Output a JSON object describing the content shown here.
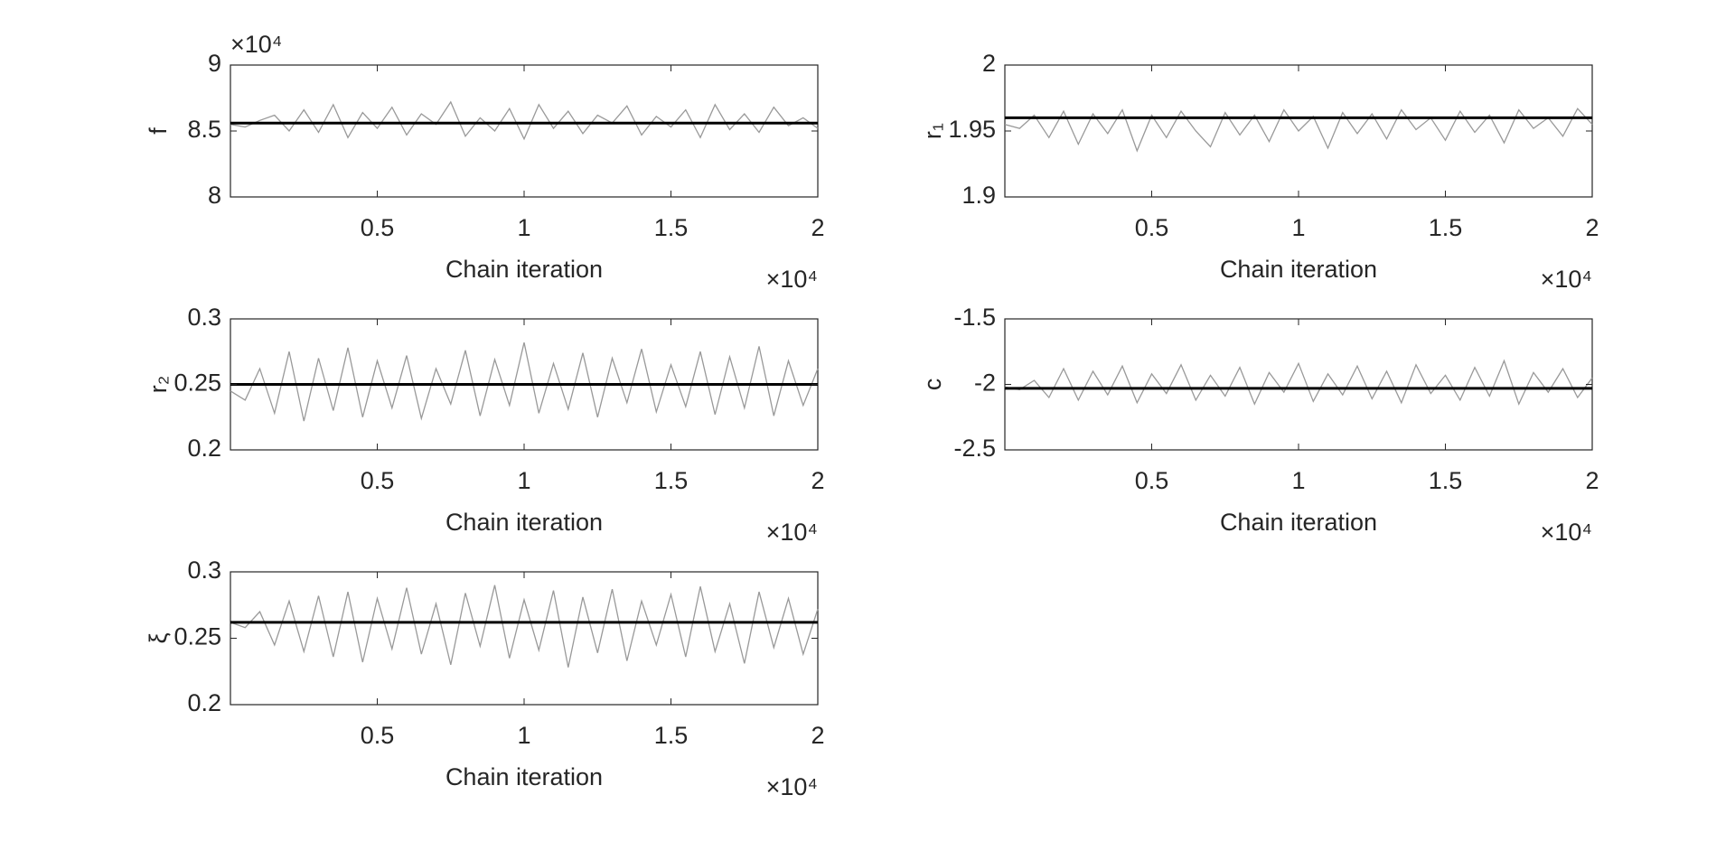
{
  "chart_data": [
    {
      "type": "line",
      "ylabel": "f",
      "xlabel": "Chain iteration",
      "x_scale_label": "×10⁴",
      "y_scale_label": "×10⁴",
      "xlim": [
        0,
        2
      ],
      "xticks": [
        0.5,
        1,
        1.5,
        2
      ],
      "ylim": [
        8,
        9
      ],
      "yticks": [
        8,
        8.5,
        9
      ],
      "x": [
        0,
        0.05,
        0.1,
        0.15,
        0.2,
        0.25,
        0.3,
        0.35,
        0.4,
        0.45,
        0.5,
        0.55,
        0.6,
        0.65,
        0.7,
        0.75,
        0.8,
        0.85,
        0.9,
        0.95,
        1,
        1.05,
        1.1,
        1.15,
        1.2,
        1.25,
        1.3,
        1.35,
        1.4,
        1.45,
        1.5,
        1.55,
        1.6,
        1.65,
        1.7,
        1.75,
        1.8,
        1.85,
        1.9,
        1.95,
        2
      ],
      "values": [
        8.55,
        8.53,
        8.58,
        8.62,
        8.5,
        8.66,
        8.49,
        8.7,
        8.45,
        8.64,
        8.52,
        8.68,
        8.47,
        8.63,
        8.55,
        8.72,
        8.46,
        8.6,
        8.5,
        8.67,
        8.44,
        8.7,
        8.52,
        8.65,
        8.48,
        8.62,
        8.56,
        8.69,
        8.47,
        8.61,
        8.53,
        8.66,
        8.45,
        8.7,
        8.51,
        8.63,
        8.49,
        8.68,
        8.54,
        8.6,
        8.52
      ],
      "color": "#999999",
      "reference": 8.56,
      "reference_color": "#000000"
    },
    {
      "type": "line",
      "ylabel": "r₁",
      "xlabel": "Chain iteration",
      "x_scale_label": "×10⁴",
      "xlim": [
        0,
        2
      ],
      "xticks": [
        0.5,
        1,
        1.5,
        2
      ],
      "ylim": [
        1.9,
        2
      ],
      "yticks": [
        1.9,
        1.95,
        2
      ],
      "x": [
        0,
        0.05,
        0.1,
        0.15,
        0.2,
        0.25,
        0.3,
        0.35,
        0.4,
        0.45,
        0.5,
        0.55,
        0.6,
        0.65,
        0.7,
        0.75,
        0.8,
        0.85,
        0.9,
        0.95,
        1,
        1.05,
        1.1,
        1.15,
        1.2,
        1.25,
        1.3,
        1.35,
        1.4,
        1.45,
        1.5,
        1.55,
        1.6,
        1.65,
        1.7,
        1.75,
        1.8,
        1.85,
        1.9,
        1.95,
        2
      ],
      "values": [
        1.955,
        1.952,
        1.962,
        1.945,
        1.965,
        1.94,
        1.963,
        1.948,
        1.966,
        1.935,
        1.962,
        1.945,
        1.965,
        1.95,
        1.938,
        1.964,
        1.947,
        1.962,
        1.942,
        1.966,
        1.95,
        1.961,
        1.937,
        1.964,
        1.948,
        1.963,
        1.944,
        1.966,
        1.951,
        1.96,
        1.943,
        1.965,
        1.949,
        1.962,
        1.941,
        1.966,
        1.952,
        1.96,
        1.946,
        1.967,
        1.955
      ],
      "color": "#999999",
      "reference": 1.96,
      "reference_color": "#000000"
    },
    {
      "type": "line",
      "ylabel": "r₂",
      "xlabel": "Chain iteration",
      "x_scale_label": "×10⁴",
      "xlim": [
        0,
        2
      ],
      "xticks": [
        0.5,
        1,
        1.5,
        2
      ],
      "ylim": [
        0.2,
        0.3
      ],
      "yticks": [
        0.2,
        0.25,
        0.3
      ],
      "x": [
        0,
        0.05,
        0.1,
        0.15,
        0.2,
        0.25,
        0.3,
        0.35,
        0.4,
        0.45,
        0.5,
        0.55,
        0.6,
        0.65,
        0.7,
        0.75,
        0.8,
        0.85,
        0.9,
        0.95,
        1,
        1.05,
        1.1,
        1.15,
        1.2,
        1.25,
        1.3,
        1.35,
        1.4,
        1.45,
        1.5,
        1.55,
        1.6,
        1.65,
        1.7,
        1.75,
        1.8,
        1.85,
        1.9,
        1.95,
        2
      ],
      "values": [
        0.245,
        0.238,
        0.262,
        0.228,
        0.275,
        0.222,
        0.27,
        0.23,
        0.278,
        0.225,
        0.268,
        0.232,
        0.272,
        0.224,
        0.262,
        0.235,
        0.276,
        0.226,
        0.269,
        0.234,
        0.282,
        0.228,
        0.266,
        0.231,
        0.274,
        0.225,
        0.27,
        0.236,
        0.277,
        0.229,
        0.265,
        0.233,
        0.275,
        0.227,
        0.271,
        0.232,
        0.279,
        0.226,
        0.268,
        0.234,
        0.262
      ],
      "color": "#999999",
      "reference": 0.25,
      "reference_color": "#000000"
    },
    {
      "type": "line",
      "ylabel": "c",
      "xlabel": "Chain iteration",
      "x_scale_label": "×10⁴",
      "xlim": [
        0,
        2
      ],
      "xticks": [
        0.5,
        1,
        1.5,
        2
      ],
      "ylim": [
        -2.5,
        -1.5
      ],
      "yticks": [
        -2.5,
        -2,
        -1.5
      ],
      "x": [
        0,
        0.05,
        0.1,
        0.15,
        0.2,
        0.25,
        0.3,
        0.35,
        0.4,
        0.45,
        0.5,
        0.55,
        0.6,
        0.65,
        0.7,
        0.75,
        0.8,
        0.85,
        0.9,
        0.95,
        1,
        1.05,
        1.1,
        1.15,
        1.2,
        1.25,
        1.3,
        1.35,
        1.4,
        1.45,
        1.5,
        1.55,
        1.6,
        1.65,
        1.7,
        1.75,
        1.8,
        1.85,
        1.9,
        1.95,
        2
      ],
      "values": [
        -2.02,
        -2.04,
        -1.97,
        -2.1,
        -1.88,
        -2.12,
        -1.9,
        -2.08,
        -1.86,
        -2.14,
        -1.92,
        -2.07,
        -1.85,
        -2.12,
        -1.93,
        -2.09,
        -1.87,
        -2.15,
        -1.91,
        -2.06,
        -1.84,
        -2.13,
        -1.92,
        -2.08,
        -1.86,
        -2.11,
        -1.9,
        -2.14,
        -1.85,
        -2.07,
        -1.93,
        -2.12,
        -1.87,
        -2.09,
        -1.82,
        -2.15,
        -1.91,
        -2.06,
        -1.88,
        -2.1,
        -1.95
      ],
      "color": "#999999",
      "reference": -2.03,
      "reference_color": "#000000"
    },
    {
      "type": "line",
      "ylabel": "ξ",
      "xlabel": "Chain iteration",
      "x_scale_label": "×10⁴",
      "xlim": [
        0,
        2
      ],
      "xticks": [
        0.5,
        1,
        1.5,
        2
      ],
      "ylim": [
        0.2,
        0.3
      ],
      "yticks": [
        0.2,
        0.25,
        0.3
      ],
      "x": [
        0,
        0.05,
        0.1,
        0.15,
        0.2,
        0.25,
        0.3,
        0.35,
        0.4,
        0.45,
        0.5,
        0.55,
        0.6,
        0.65,
        0.7,
        0.75,
        0.8,
        0.85,
        0.9,
        0.95,
        1,
        1.05,
        1.1,
        1.15,
        1.2,
        1.25,
        1.3,
        1.35,
        1.4,
        1.45,
        1.5,
        1.55,
        1.6,
        1.65,
        1.7,
        1.75,
        1.8,
        1.85,
        1.9,
        1.95,
        2
      ],
      "values": [
        0.262,
        0.258,
        0.27,
        0.245,
        0.278,
        0.24,
        0.282,
        0.236,
        0.285,
        0.232,
        0.28,
        0.242,
        0.288,
        0.238,
        0.276,
        0.23,
        0.284,
        0.244,
        0.29,
        0.235,
        0.279,
        0.241,
        0.286,
        0.228,
        0.281,
        0.239,
        0.287,
        0.233,
        0.278,
        0.245,
        0.283,
        0.236,
        0.289,
        0.24,
        0.276,
        0.231,
        0.285,
        0.243,
        0.28,
        0.238,
        0.272
      ],
      "color": "#999999",
      "reference": 0.262,
      "reference_color": "#000000"
    }
  ]
}
